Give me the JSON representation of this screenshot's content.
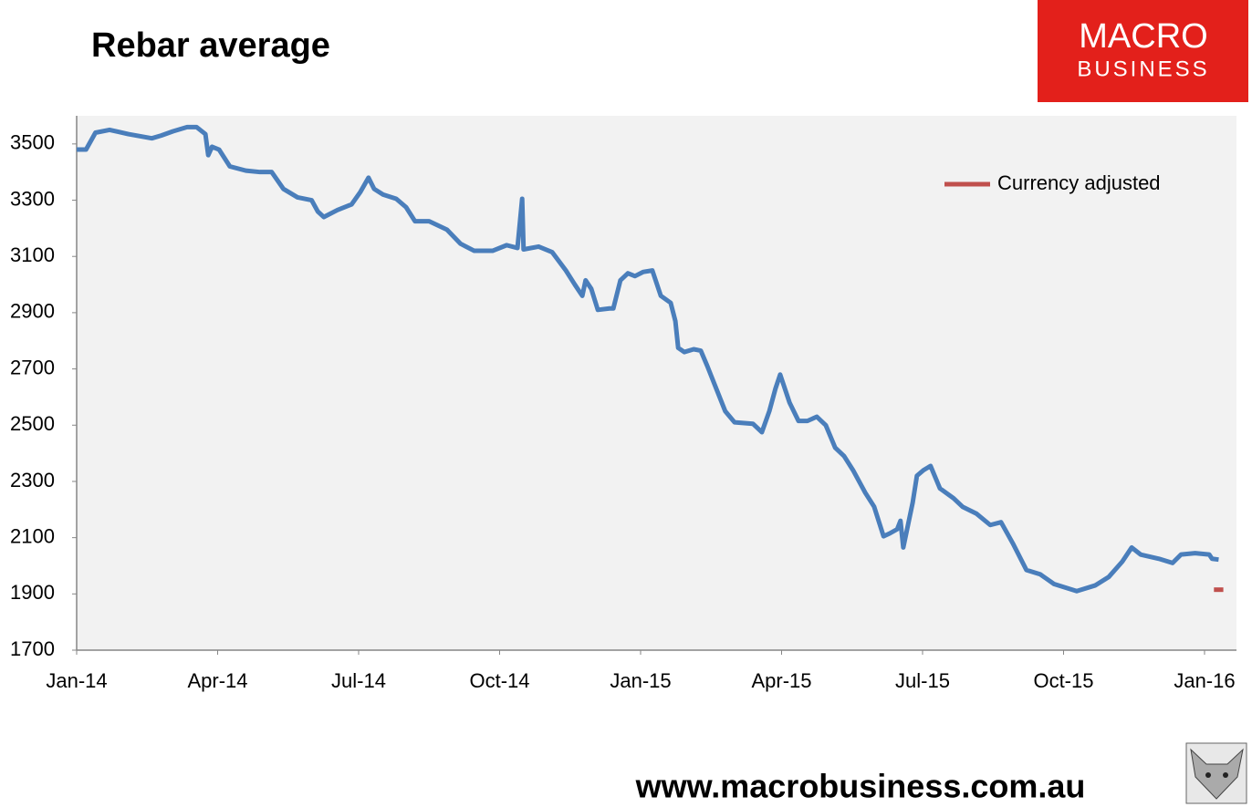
{
  "chart_data": {
    "type": "line",
    "title": "Rebar average",
    "brand": {
      "top": "MACRO",
      "bottom": "BUSINESS"
    },
    "footer": "www.macrobusiness.com.au",
    "xlim": [
      0,
      24.68
    ],
    "xticks": [
      {
        "value": 0,
        "label": "Jan-14"
      },
      {
        "value": 3,
        "label": "Apr-14"
      },
      {
        "value": 6,
        "label": "Jul-14"
      },
      {
        "value": 9,
        "label": "Oct-14"
      },
      {
        "value": 12,
        "label": "Jan-15"
      },
      {
        "value": 15,
        "label": "Apr-15"
      },
      {
        "value": 18,
        "label": "Jul-15"
      },
      {
        "value": 21,
        "label": "Oct-15"
      },
      {
        "value": 24,
        "label": "Jan-16"
      }
    ],
    "ylim": [
      1700,
      3600
    ],
    "yticks": [
      1700,
      1900,
      2100,
      2300,
      2500,
      2700,
      2900,
      3100,
      3300,
      3500
    ],
    "grid": false,
    "legend": "upper right",
    "series": [
      {
        "color": "#4a7ebb",
        "x": [
          0,
          0.2,
          0.4,
          0.7,
          1.1,
          1.6,
          1.8,
          2.05,
          2.35,
          2.55,
          2.74,
          2.8,
          2.88,
          3.03,
          3.26,
          3.6,
          3.9,
          4.15,
          4.4,
          4.7,
          5.0,
          5.13,
          5.26,
          5.55,
          5.85,
          6.04,
          6.21,
          6.33,
          6.52,
          6.8,
          7.01,
          7.2,
          7.5,
          7.88,
          8.17,
          8.46,
          8.85,
          9.15,
          9.38,
          9.48,
          9.51,
          9.83,
          10.12,
          10.41,
          10.6,
          10.76,
          10.83,
          10.95,
          11.09,
          11.34,
          11.42,
          11.57,
          11.73,
          11.88,
          12.06,
          12.25,
          12.43,
          12.64,
          12.74,
          12.8,
          12.93,
          13.13,
          13.28,
          13.42,
          13.61,
          13.8,
          14.0,
          14.39,
          14.58,
          14.74,
          14.87,
          14.97,
          15.17,
          15.36,
          15.55,
          15.75,
          15.94,
          16.14,
          16.33,
          16.52,
          16.78,
          16.97,
          17.17,
          17.3,
          17.46,
          17.53,
          17.59,
          17.69,
          17.79,
          17.88,
          18.02,
          18.17,
          18.37,
          18.66,
          18.85,
          19.15,
          19.44,
          19.67,
          19.92,
          20.21,
          20.5,
          20.8,
          21.28,
          21.67,
          21.96,
          22.25,
          22.45,
          22.64,
          23.03,
          23.32,
          23.5,
          23.8,
          24.1,
          24.16,
          24.3
        ],
        "values": [
          3480,
          3480,
          3540,
          3550,
          3535,
          3520,
          3530,
          3545,
          3560,
          3560,
          3535,
          3460,
          3490,
          3480,
          3420,
          3405,
          3400,
          3400,
          3340,
          3310,
          3300,
          3260,
          3240,
          3265,
          3285,
          3330,
          3380,
          3340,
          3320,
          3305,
          3275,
          3225,
          3225,
          3195,
          3145,
          3120,
          3120,
          3140,
          3130,
          3305,
          3125,
          3135,
          3115,
          3050,
          3000,
          2960,
          3015,
          2985,
          2910,
          2915,
          2915,
          3015,
          3040,
          3030,
          3045,
          3050,
          2960,
          2935,
          2870,
          2775,
          2760,
          2770,
          2765,
          2710,
          2630,
          2550,
          2510,
          2505,
          2475,
          2550,
          2630,
          2680,
          2580,
          2515,
          2515,
          2530,
          2500,
          2420,
          2390,
          2340,
          2260,
          2210,
          2105,
          2115,
          2130,
          2160,
          2065,
          2145,
          2225,
          2320,
          2340,
          2355,
          2275,
          2240,
          2210,
          2185,
          2145,
          2155,
          2080,
          1985,
          1970,
          1935,
          1910,
          1930,
          1960,
          2015,
          2065,
          2040,
          2025,
          2010,
          2040,
          2045,
          2040,
          2025,
          2022
        ]
      },
      {
        "name": "Currency adjusted",
        "color": "#c0504d",
        "x": [
          24.2,
          24.4
        ],
        "values": [
          1915,
          1915
        ]
      }
    ]
  }
}
